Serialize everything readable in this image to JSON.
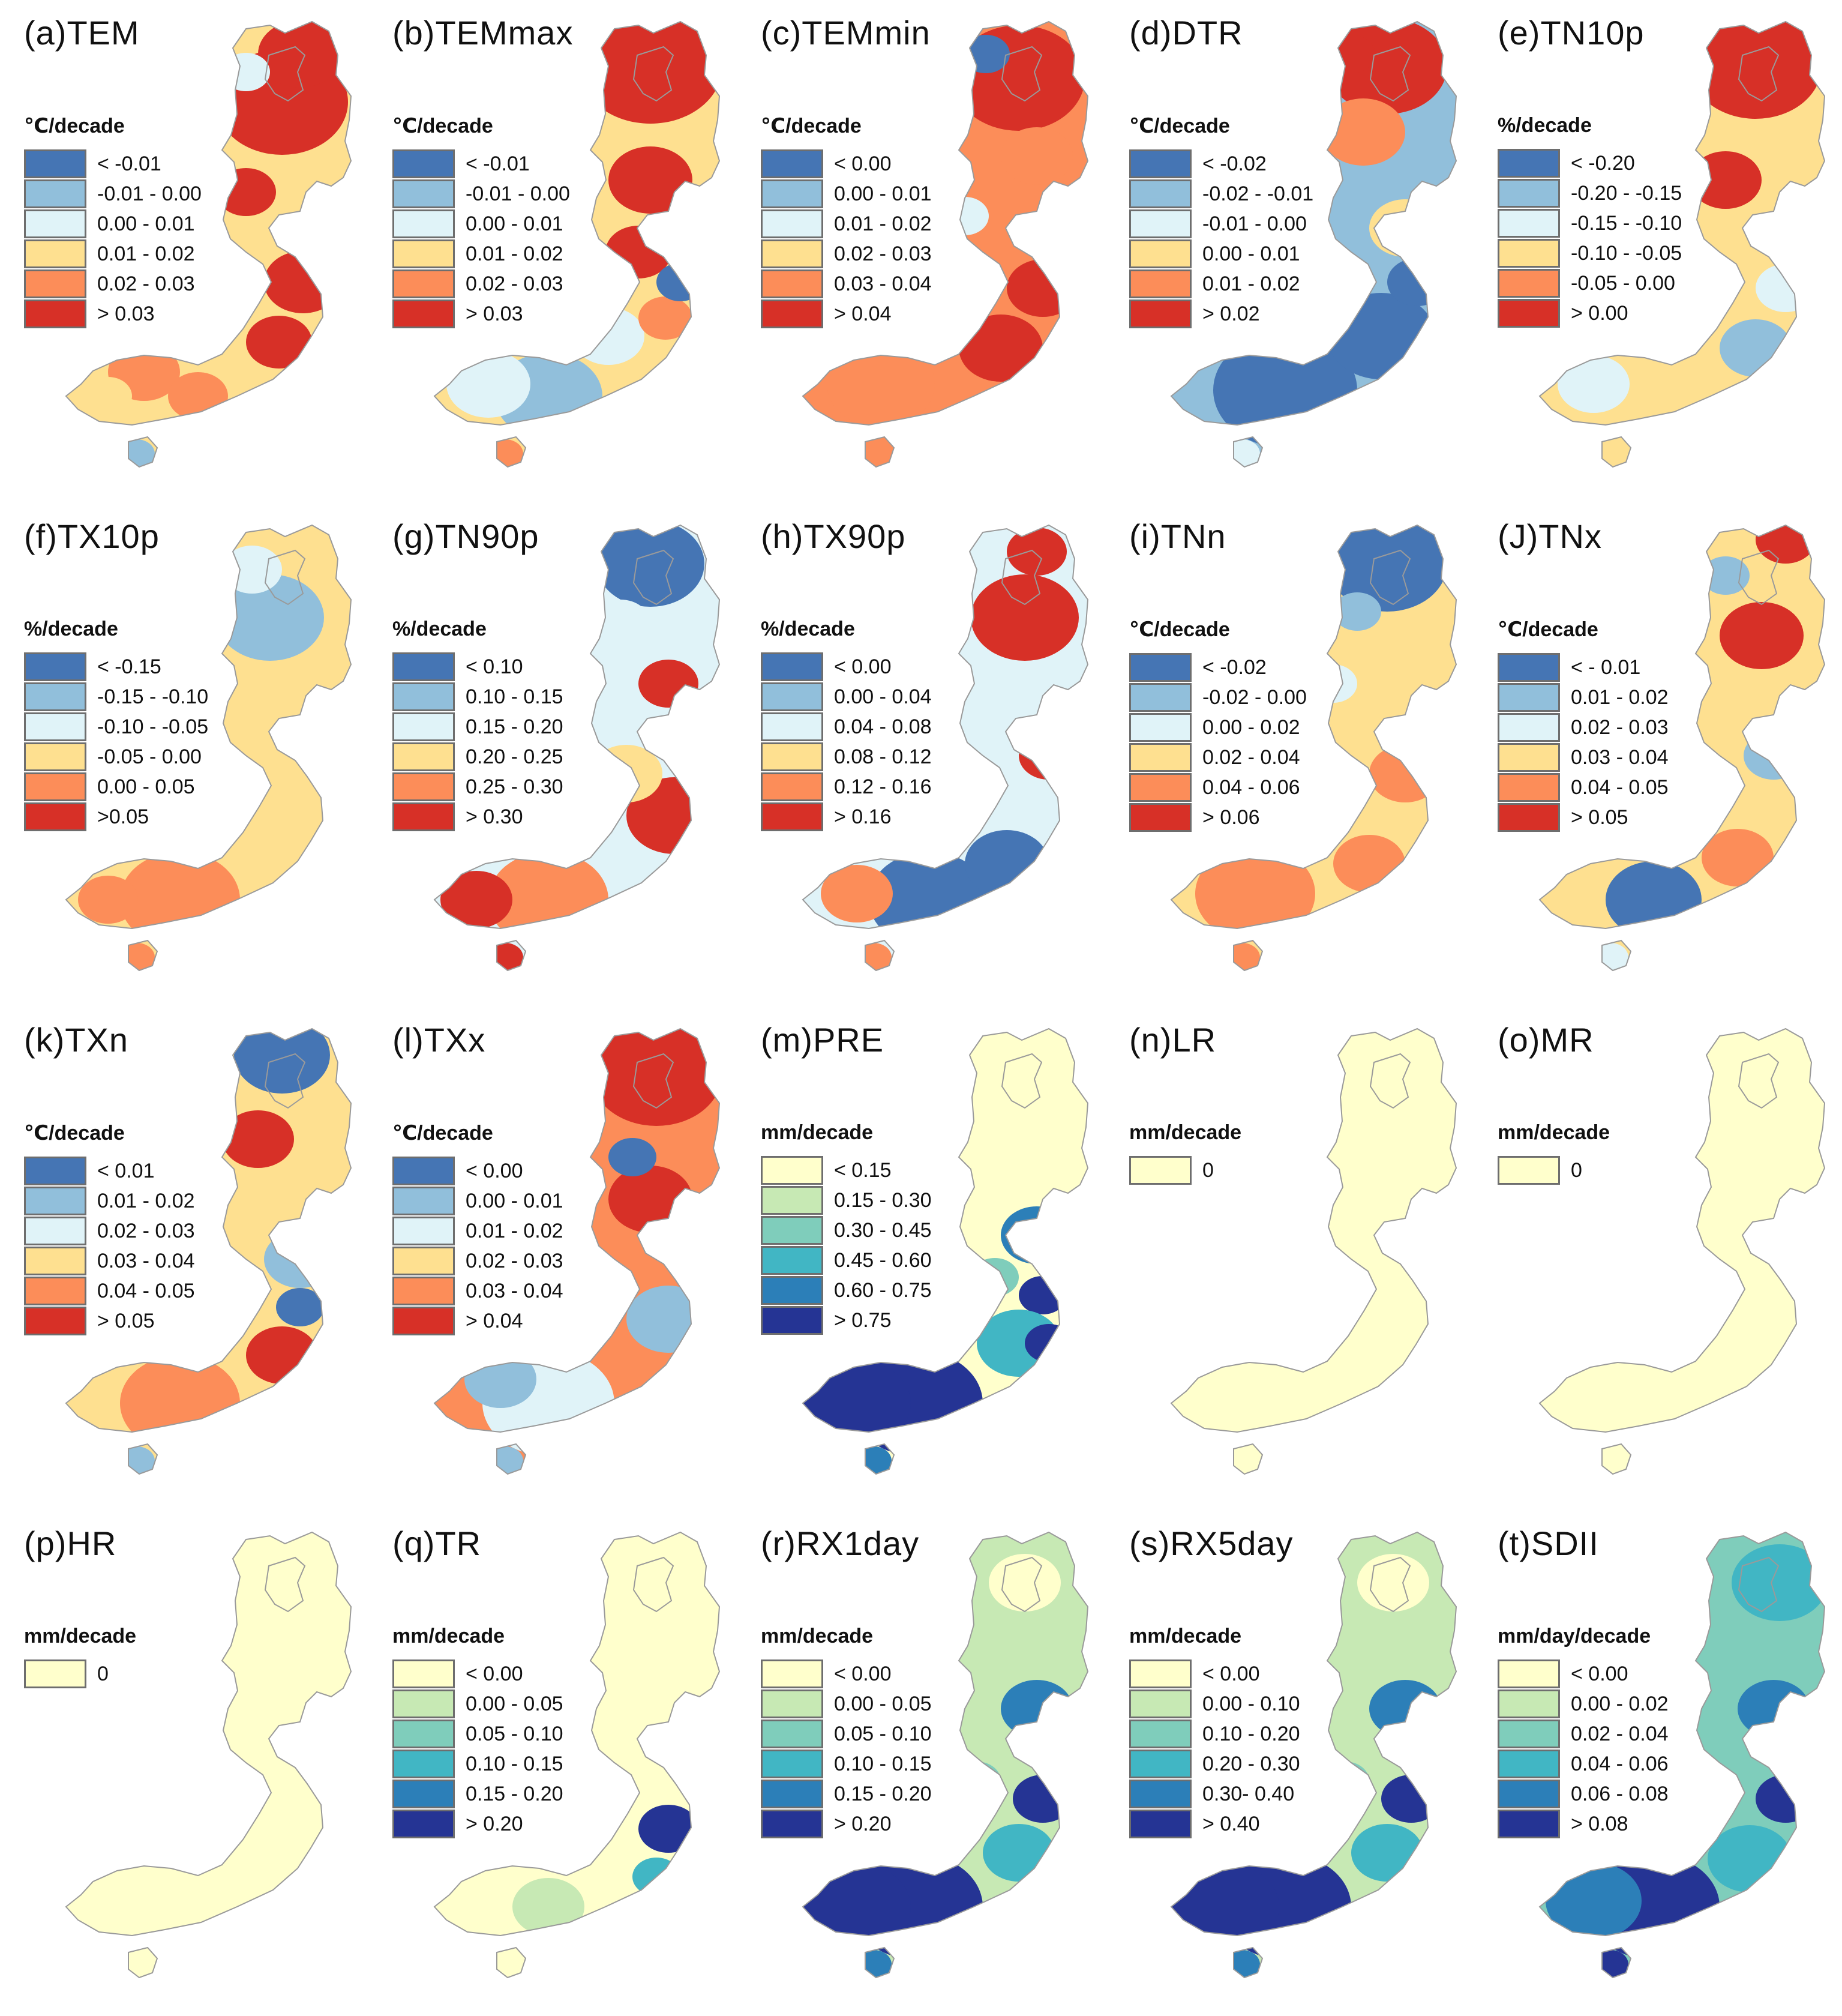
{
  "figure": {
    "palettes": {
      "temp": [
        "#4575b4",
        "#91bfdb",
        "#e0f3f8",
        "#fee090",
        "#fc8d59",
        "#d73027"
      ],
      "precip": [
        "#ffffcc",
        "#c7e9b4",
        "#7fcdbb",
        "#41b6c4",
        "#2c7fb8",
        "#253494"
      ],
      "zero": [
        "#ffffcc"
      ]
    },
    "panels": [
      {
        "title": "(a)TEM",
        "unit": "℃/decade",
        "palette": "temp",
        "pattern": "a",
        "classes": [
          "< -0.01",
          "-0.01 - 0.00",
          "0.00 - 0.01",
          "0.01 - 0.02",
          "0.02 - 0.03",
          "> 0.03"
        ]
      },
      {
        "title": "(b)TEMmax",
        "unit": "℃/decade",
        "palette": "temp",
        "pattern": "b",
        "classes": [
          "< -0.01",
          "-0.01 - 0.00",
          "0.00 - 0.01",
          "0.01 - 0.02",
          "0.02 - 0.03",
          "> 0.03"
        ]
      },
      {
        "title": "(c)TEMmin",
        "unit": "℃/decade",
        "palette": "temp",
        "pattern": "c",
        "classes": [
          "< 0.00",
          "0.00 - 0.01",
          "0.01 - 0.02",
          "0.02 - 0.03",
          "0.03 - 0.04",
          "> 0.04"
        ]
      },
      {
        "title": "(d)DTR",
        "unit": "℃/decade",
        "palette": "temp",
        "pattern": "d",
        "classes": [
          "< -0.02",
          "-0.02 - -0.01",
          "-0.01 - 0.00",
          "0.00 - 0.01",
          "0.01 - 0.02",
          "> 0.02"
        ]
      },
      {
        "title": "(e)TN10p",
        "unit": "%/decade",
        "palette": "temp",
        "pattern": "e",
        "classes": [
          "< -0.20",
          "-0.20 - -0.15",
          "-0.15 - -0.10",
          "-0.10 - -0.05",
          "-0.05 - 0.00",
          "> 0.00"
        ]
      },
      {
        "title": "(f)TX10p",
        "unit": "%/decade",
        "palette": "temp",
        "pattern": "f",
        "classes": [
          "< -0.15",
          "-0.15 - -0.10",
          "-0.10 - -0.05",
          "-0.05 - 0.00",
          "0.00 - 0.05",
          ">0.05"
        ]
      },
      {
        "title": "(g)TN90p",
        "unit": "%/decade",
        "palette": "temp",
        "pattern": "g",
        "classes": [
          "< 0.10",
          "0.10 - 0.15",
          "0.15 - 0.20",
          "0.20 - 0.25",
          "0.25 - 0.30",
          "> 0.30"
        ]
      },
      {
        "title": "(h)TX90p",
        "unit": "%/decade",
        "palette": "temp",
        "pattern": "h",
        "classes": [
          "< 0.00",
          "0.00 - 0.04",
          "0.04 - 0.08",
          "0.08 - 0.12",
          "0.12 - 0.16",
          "> 0.16"
        ]
      },
      {
        "title": "(i)TNn",
        "unit": "℃/decade",
        "palette": "temp",
        "pattern": "i",
        "classes": [
          "< -0.02",
          "-0.02 - 0.00",
          "0.00 - 0.02",
          "0.02 - 0.04",
          "0.04 - 0.06",
          "> 0.06"
        ]
      },
      {
        "title": "(J)TNx",
        "unit": "℃/decade",
        "palette": "temp",
        "pattern": "j",
        "classes": [
          "< - 0.01",
          "0.01 - 0.02",
          "0.02 - 0.03",
          "0.03 - 0.04",
          "0.04 - 0.05",
          "> 0.05"
        ]
      },
      {
        "title": "(k)TXn",
        "unit": "℃/decade",
        "palette": "temp",
        "pattern": "k",
        "classes": [
          "< 0.01",
          "0.01 - 0.02",
          "0.02 - 0.03",
          "0.03 - 0.04",
          "0.04 - 0.05",
          "> 0.05"
        ]
      },
      {
        "title": "(l)TXx",
        "unit": "℃/decade",
        "palette": "temp",
        "pattern": "l",
        "classes": [
          "< 0.00",
          "0.00 - 0.01",
          "0.01 - 0.02",
          "0.02 - 0.03",
          "0.03 - 0.04",
          "> 0.04"
        ]
      },
      {
        "title": "(m)PRE",
        "unit": "mm/decade",
        "palette": "precip",
        "pattern": "m",
        "classes": [
          "< 0.15",
          "0.15 - 0.30",
          "0.30 - 0.45",
          "0.45 - 0.60",
          "0.60 - 0.75",
          "> 0.75"
        ]
      },
      {
        "title": "(n)LR",
        "unit": "mm/decade",
        "palette": "zero",
        "pattern": "zero",
        "classes": [
          "0"
        ]
      },
      {
        "title": "(o)MR",
        "unit": "mm/decade",
        "palette": "zero",
        "pattern": "zero",
        "classes": [
          "0"
        ]
      },
      {
        "title": "(p)HR",
        "unit": "mm/decade",
        "palette": "zero",
        "pattern": "zero",
        "classes": [
          "0"
        ]
      },
      {
        "title": "(q)TR",
        "unit": "mm/decade",
        "palette": "precip",
        "pattern": "q",
        "classes": [
          "< 0.00",
          "0.00 - 0.05",
          "0.05 - 0.10",
          "0.10 - 0.15",
          "0.15 - 0.20",
          "> 0.20"
        ]
      },
      {
        "title": "(r)RX1day",
        "unit": "mm/decade",
        "palette": "precip",
        "pattern": "r",
        "classes": [
          "< 0.00",
          "0.00 - 0.05",
          "0.05 - 0.10",
          "0.10 - 0.15",
          "0.15 - 0.20",
          "> 0.20"
        ]
      },
      {
        "title": "(s)RX5day",
        "unit": "mm/decade",
        "palette": "precip",
        "pattern": "r",
        "classes": [
          "< 0.00",
          "0.00 - 0.10",
          "0.10 - 0.20",
          "0.20 - 0.30",
          "0.30- 0.40",
          "> 0.40"
        ]
      },
      {
        "title": "(t)SDII",
        "unit": "mm/day/decade",
        "palette": "precip",
        "pattern": "t",
        "classes": [
          "< 0.00",
          "0.00 - 0.02",
          "0.02 - 0.04",
          "0.04 - 0.06",
          "0.06 - 0.08",
          "> 0.08"
        ]
      }
    ]
  }
}
